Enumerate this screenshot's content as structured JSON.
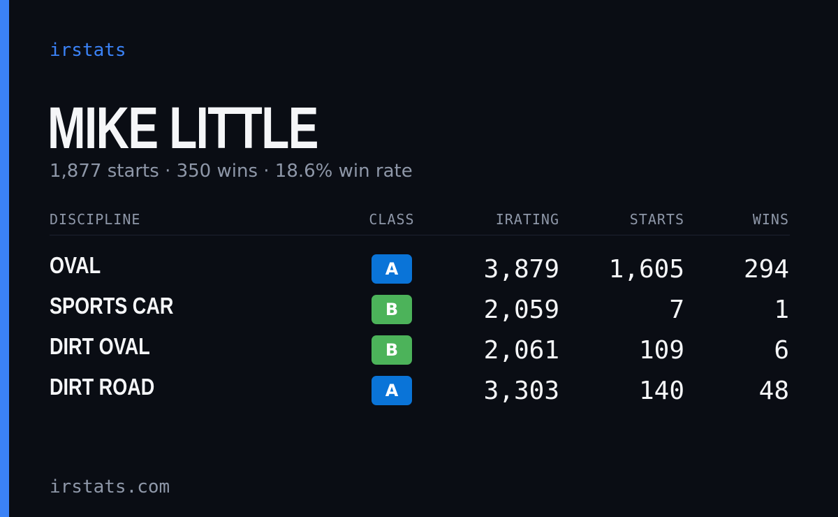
{
  "brand": "irstats",
  "driver": {
    "name": "MIKE LITTLE",
    "summary": "1,877 starts · 350 wins · 18.6% win rate"
  },
  "table": {
    "headers": {
      "discipline": "DISCIPLINE",
      "class": "CLASS",
      "irating": "IRATING",
      "starts": "STARTS",
      "wins": "WINS"
    },
    "rows": [
      {
        "discipline": "OVAL",
        "class": "A",
        "irating": "3,879",
        "starts": "1,605",
        "wins": "294"
      },
      {
        "discipline": "SPORTS CAR",
        "class": "B",
        "irating": "2,059",
        "starts": "7",
        "wins": "1"
      },
      {
        "discipline": "DIRT OVAL",
        "class": "B",
        "irating": "2,061",
        "starts": "109",
        "wins": "6"
      },
      {
        "discipline": "DIRT ROAD",
        "class": "A",
        "irating": "3,303",
        "starts": "140",
        "wins": "48"
      }
    ]
  },
  "footer": "irstats.com",
  "colors": {
    "background": "#0a0d14",
    "accent": "#3b82f6",
    "class_a": "#0a74d8",
    "class_b": "#4cb35a",
    "muted_text": "#8e97a8",
    "primary_text": "#f5f6f8"
  }
}
